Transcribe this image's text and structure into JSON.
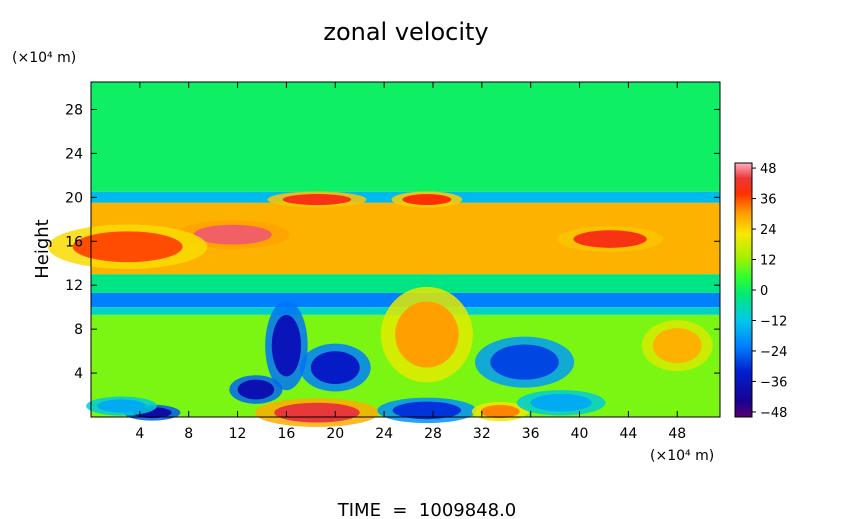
{
  "chart_data": {
    "type": "heatmap",
    "title": "zonal velocity",
    "xlabel": "",
    "ylabel": "Height",
    "x_unit": "(×10⁴ m)",
    "y_unit": "(×10⁴ m)",
    "footer": "TIME  =  1009848.0",
    "xlim": [
      0,
      51.5
    ],
    "ylim": [
      0,
      30.5
    ],
    "x_ticks": [
      4,
      8,
      12,
      16,
      20,
      24,
      28,
      32,
      36,
      40,
      44,
      48
    ],
    "x_tick_labels": [
      "4",
      "8",
      "12",
      "16",
      "20",
      "24",
      "28",
      "32",
      "36",
      "40",
      "44",
      "48"
    ],
    "y_ticks": [
      4,
      8,
      12,
      16,
      20,
      24,
      28
    ],
    "y_tick_labels": [
      "4",
      "8",
      "12",
      "16",
      "20",
      "24",
      "28"
    ],
    "colorbar": {
      "range": [
        -50,
        50
      ],
      "ticks": [
        48,
        36,
        24,
        12,
        0,
        -12,
        -24,
        -36,
        -48
      ],
      "tick_labels": [
        "48",
        "36",
        "24",
        "12",
        "0",
        "−12",
        "−24",
        "−36",
        "−48"
      ]
    },
    "field_description": {
      "layers": [
        {
          "y_range": [
            20.5,
            30.5
          ],
          "value": 0
        },
        {
          "y_range": [
            19.5,
            20.5
          ],
          "value": -14
        },
        {
          "y_range": [
            13,
            19.5
          ],
          "value": 28
        },
        {
          "y_range": [
            11.3,
            13
          ],
          "value": -3
        },
        {
          "y_range": [
            10,
            11.3
          ],
          "value": -22
        },
        {
          "y_range": [
            9.3,
            10
          ],
          "value": -9
        },
        {
          "y_range": [
            0,
            9.3
          ],
          "value": 10
        }
      ],
      "features": [
        {
          "x": 11.6,
          "y": 16.6,
          "rx": 3.2,
          "ry": 0.9,
          "value": 46
        },
        {
          "x": 18.5,
          "y": 19.8,
          "rx": 2.8,
          "ry": 0.5,
          "value": 40
        },
        {
          "x": 27.5,
          "y": 19.8,
          "rx": 2.0,
          "ry": 0.5,
          "value": 38
        },
        {
          "x": 3.0,
          "y": 15.5,
          "rx": 4.5,
          "ry": 1.4,
          "value": 36
        },
        {
          "x": 42.5,
          "y": 16.2,
          "rx": 3.0,
          "ry": 0.8,
          "value": 40
        },
        {
          "x": 20.0,
          "y": 4.5,
          "rx": 2.0,
          "ry": 1.5,
          "value": -34
        },
        {
          "x": 16.0,
          "y": 6.5,
          "rx": 1.2,
          "ry": 2.8,
          "value": -36
        },
        {
          "x": 13.5,
          "y": 2.5,
          "rx": 1.5,
          "ry": 0.9,
          "value": -38
        },
        {
          "x": 35.5,
          "y": 5.0,
          "rx": 2.8,
          "ry": 1.6,
          "value": -28
        },
        {
          "x": 27.5,
          "y": 7.5,
          "rx": 2.6,
          "ry": 3.0,
          "value": 30
        },
        {
          "x": 48.0,
          "y": 6.5,
          "rx": 2.0,
          "ry": 1.6,
          "value": 28
        },
        {
          "x": 18.5,
          "y": 0.4,
          "rx": 3.5,
          "ry": 0.9,
          "value": 44
        },
        {
          "x": 5.0,
          "y": 0.4,
          "rx": 1.6,
          "ry": 0.5,
          "value": -40
        },
        {
          "x": 27.5,
          "y": 0.6,
          "rx": 2.8,
          "ry": 0.8,
          "value": -30
        },
        {
          "x": 33.5,
          "y": 0.5,
          "rx": 1.6,
          "ry": 0.6,
          "value": 32
        },
        {
          "x": 2.5,
          "y": 1.0,
          "rx": 2.0,
          "ry": 0.6,
          "value": -16
        },
        {
          "x": 38.5,
          "y": 1.3,
          "rx": 2.5,
          "ry": 0.8,
          "value": -16
        }
      ]
    }
  }
}
